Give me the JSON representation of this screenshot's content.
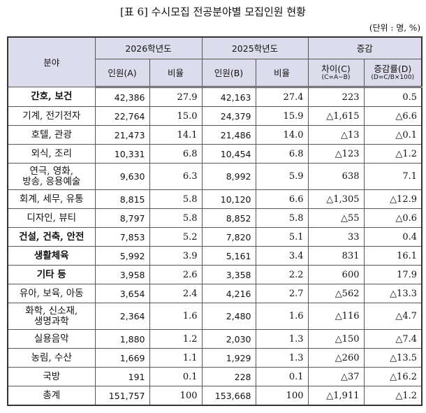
{
  "header": {
    "title": "[표 6] 수시모집 전공분야별 모집인원 현황",
    "unit": "(단위 : 명, %)"
  },
  "table": {
    "head": {
      "field": "분야",
      "y2026": "2026학년도",
      "y2025": "2025학년도",
      "change": "증감",
      "count_a": "인원(A)",
      "ratio_a": "비율",
      "count_b": "인원(B)",
      "ratio_b": "비율",
      "diff": "차이(C)",
      "diff_note": "(C=A−B)",
      "rate": "증감률(D)",
      "rate_note": "(D=C/B×100)"
    },
    "rows": [
      [
        "간호, 보건",
        "42,386",
        "27.9",
        "42,163",
        "27.4",
        "223",
        "0.5"
      ],
      [
        "기계, 전기전자",
        "22,764",
        "15.0",
        "24,379",
        "15.9",
        "△1,615",
        "△6.6"
      ],
      [
        "호텔, 관광",
        "21,473",
        "14.1",
        "21,486",
        "14.0",
        "△13",
        "△0.1"
      ],
      [
        "외식, 조리",
        "10,331",
        "6.8",
        "10,454",
        "6.8",
        "△123",
        "△1.2"
      ],
      [
        "연극, 영화,\n방송, 응용예술",
        "9,630",
        "6.3",
        "8,992",
        "5.9",
        "638",
        "7.1"
      ],
      [
        "회계, 세무, 유통",
        "8,815",
        "5.8",
        "10,120",
        "6.6",
        "△1,305",
        "△12.9"
      ],
      [
        "디자인, 뷰티",
        "8,797",
        "5.8",
        "8,852",
        "5.8",
        "△55",
        "△0.6"
      ],
      [
        "건설, 건축, 안전",
        "7,853",
        "5.2",
        "7,820",
        "5.1",
        "33",
        "0.4"
      ],
      [
        "생활체육",
        "5,992",
        "3.9",
        "5,161",
        "3.4",
        "831",
        "16.1"
      ],
      [
        "기타 등",
        "3,958",
        "2.6",
        "3,358",
        "2.2",
        "600",
        "17.9"
      ],
      [
        "유아, 보육, 아동",
        "3,654",
        "2.4",
        "4,216",
        "2.7",
        "△562",
        "△13.3"
      ],
      [
        "화학, 신소재,\n생명과학",
        "2,364",
        "1.6",
        "2,480",
        "1.6",
        "△116",
        "△4.7"
      ],
      [
        "실용음악",
        "1,880",
        "1.2",
        "2,030",
        "1.3",
        "△150",
        "△7.4"
      ],
      [
        "농림, 수산",
        "1,669",
        "1.1",
        "1,929",
        "1.3",
        "△260",
        "△13.5"
      ],
      [
        "국방",
        "191",
        "0.1",
        "228",
        "0.1",
        "△37",
        "△16.2"
      ],
      [
        "총계",
        "151,757",
        "100",
        "153,668",
        "100",
        "△1,911",
        "△1.2"
      ]
    ]
  }
}
